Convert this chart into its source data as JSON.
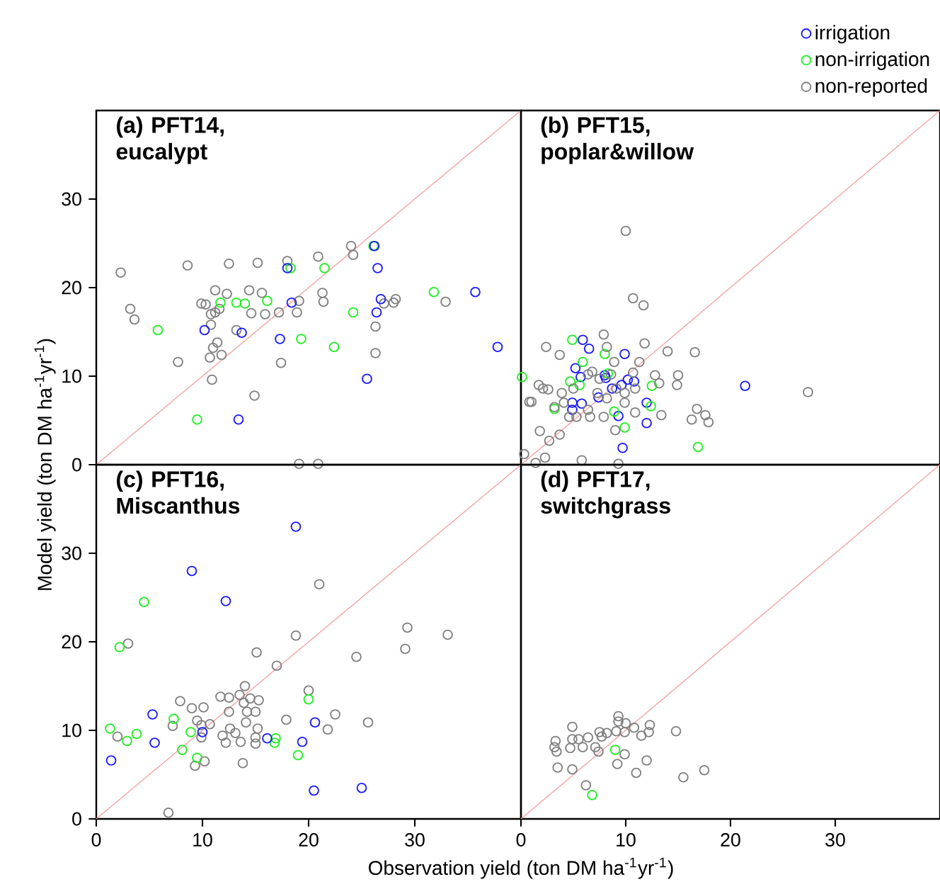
{
  "chart_data": [
    {
      "type": "scatter",
      "title": "(a) PFT14, eucalypt",
      "ylabel": "Model yield (ton DM ha$^{-1}$yr$^{-1}$)",
      "xlim": [
        0,
        40
      ],
      "ylim": [
        0,
        40
      ],
      "xticks": [
        0,
        10,
        20,
        30
      ],
      "yticks": [
        0,
        10,
        20,
        30
      ],
      "tick_labels": "y",
      "marker": "circle",
      "grid": false,
      "legend": false,
      "series": [
        {
          "type": "line",
          "marker": "none",
          "color": "#f4a0a0",
          "x": [
            0,
            40
          ],
          "values": [
            0,
            40
          ]
        },
        {
          "color": "#808080",
          "x": [
            2.3,
            3.2,
            3.6,
            8.6,
            12.5,
            15.2,
            18.0,
            20.9,
            24.0,
            24.2,
            11.2,
            12.3,
            14.4,
            15.6,
            9.9,
            10.3,
            10.8,
            11.2,
            11.6,
            10.8,
            11.0,
            11.4,
            11.8,
            10.7,
            7.7,
            10.9,
            13.2,
            14.6,
            15.9,
            17.2,
            17.4,
            14.9,
            18.9,
            19.1,
            21.3,
            21.4,
            26.3,
            26.3,
            27.1,
            28.0,
            28.2,
            32.9,
            19.1,
            20.9
          ],
          "values": [
            21.7,
            17.6,
            16.4,
            22.5,
            22.7,
            22.8,
            23.0,
            23.5,
            24.7,
            23.7,
            19.7,
            19.3,
            19.7,
            19.4,
            18.2,
            18.1,
            17.0,
            17.2,
            17.6,
            15.8,
            13.2,
            13.8,
            12.4,
            12.1,
            11.6,
            9.6,
            15.2,
            17.1,
            17.0,
            17.2,
            11.5,
            7.8,
            17.2,
            18.5,
            19.4,
            18.4,
            15.6,
            12.6,
            18.2,
            18.3,
            18.7,
            18.4,
            0.1,
            0.1
          ]
        },
        {
          "color": "#22ee22",
          "x": [
            5.8,
            9.5,
            11.7,
            13.2,
            14.0,
            16.1,
            18.3,
            21.5,
            24.2,
            19.3,
            22.4,
            31.8,
            26.1
          ],
          "values": [
            15.2,
            5.1,
            18.3,
            18.3,
            18.2,
            18.5,
            22.2,
            22.2,
            17.2,
            14.2,
            13.3,
            19.5,
            24.7
          ]
        },
        {
          "color": "#1a1aff",
          "x": [
            10.2,
            13.7,
            13.4,
            18.0,
            18.4,
            17.3,
            26.2,
            26.5,
            26.8,
            26.4,
            25.5,
            35.7,
            37.8
          ],
          "values": [
            15.2,
            14.9,
            5.1,
            22.2,
            18.3,
            14.2,
            24.7,
            22.2,
            18.7,
            17.2,
            9.7,
            19.5,
            13.3
          ]
        }
      ]
    },
    {
      "type": "scatter",
      "title": "(b) PFT15, poplar&willow",
      "xlim": [
        0,
        40
      ],
      "ylim": [
        0,
        40
      ],
      "xticks": [
        0,
        10,
        20,
        30
      ],
      "yticks": [
        0,
        10,
        20,
        30
      ],
      "tick_labels": false,
      "marker": "circle",
      "grid": false,
      "legend": "top right",
      "series": [
        {
          "type": "line",
          "marker": "none",
          "color": "#f4a0a0",
          "x": [
            0,
            40
          ],
          "values": [
            0,
            40
          ]
        },
        {
          "name": "irrigation",
          "color": "#1a1aff",
          "x": [
            5.9,
            6.5,
            9.9,
            5.2,
            5.7,
            8.0,
            8.1,
            8.7,
            9.6,
            10.2,
            10.8,
            21.4,
            7.4,
            4.9,
            4.9,
            5.8,
            12.0,
            9.3,
            12.0,
            9.7
          ],
          "values": [
            14.1,
            13.1,
            12.5,
            10.9,
            9.9,
            10.1,
            9.8,
            8.6,
            9.0,
            9.6,
            9.4,
            8.9,
            7.6,
            7.0,
            6.2,
            6.9,
            7.0,
            5.5,
            4.7,
            1.9
          ]
        },
        {
          "name": "non-irrigation",
          "color": "#22ee22",
          "x": [
            0.1,
            4.9,
            5.9,
            8.0,
            4.7,
            5.6,
            8.3,
            12.5,
            3.2,
            12.4,
            8.9,
            9.9,
            16.9
          ],
          "values": [
            9.9,
            14.1,
            11.6,
            12.5,
            9.4,
            9.0,
            10.3,
            8.9,
            6.3,
            6.6,
            6.0,
            4.2,
            2.0
          ]
        },
        {
          "name": "non-reported",
          "color": "#808080",
          "x": [
            10.0,
            10.7,
            11.7,
            7.9,
            2.4,
            3.7,
            8.2,
            11.8,
            14.0,
            16.6,
            11.3,
            8.9,
            6.8,
            10.7,
            12.8,
            15.0,
            13.2,
            14.9,
            27.4,
            1.7,
            2.1,
            2.6,
            0.8,
            1.0,
            3.9,
            3.2,
            4.1,
            5.3,
            6.6,
            7.9,
            6.4,
            9.9,
            9.9,
            9.1,
            10.9,
            13.4,
            16.8,
            17.6,
            17.9,
            16.3,
            1.8,
            2.7,
            3.7,
            9.0,
            0.3,
            1.4,
            2.3,
            5.8,
            9.3,
            6.4,
            7.5,
            8.6,
            5.0,
            7.3,
            8.2,
            10.9,
            4.6
          ],
          "values": [
            26.4,
            18.8,
            18.0,
            14.7,
            13.3,
            12.4,
            13.3,
            13.7,
            12.8,
            12.7,
            11.6,
            11.6,
            10.5,
            10.4,
            10.1,
            10.1,
            9.2,
            9.0,
            8.2,
            9.0,
            8.6,
            8.5,
            7.1,
            7.1,
            8.1,
            6.5,
            7.0,
            5.4,
            5.4,
            5.4,
            6.2,
            7.0,
            8.1,
            8.6,
            8.6,
            5.6,
            6.3,
            5.6,
            4.8,
            5.1,
            3.8,
            2.7,
            3.4,
            3.9,
            1.2,
            0.2,
            0.8,
            0.5,
            0.1,
            10.2,
            9.7,
            10.2,
            8.6,
            8.1,
            7.5,
            5.9,
            5.4
          ]
        }
      ]
    },
    {
      "type": "scatter",
      "title": "(c) PFT16, Miscanthus",
      "xlabel": "Observation yield (ton DM ha$^{-1}$yr$^{-1}$)",
      "xlim": [
        0,
        40
      ],
      "ylim": [
        0,
        40
      ],
      "xticks": [
        0,
        10,
        20,
        30
      ],
      "yticks": [
        0,
        10,
        20,
        30
      ],
      "marker": "circle",
      "grid": false,
      "legend": false,
      "series": [
        {
          "type": "line",
          "marker": "none",
          "color": "#f4a0a0",
          "x": [
            0,
            40
          ],
          "values": [
            0,
            40
          ]
        },
        {
          "color": "#808080",
          "x": [
            21.0,
            18.8,
            29.3,
            33.1,
            29.1,
            24.5,
            15.1,
            17.0,
            3.0,
            14.0,
            11.7,
            12.5,
            13.5,
            14.5,
            15.3,
            7.9,
            9.0,
            10.1,
            12.5,
            14.2,
            15.0,
            13.9,
            20.0,
            22.5,
            17.9,
            25.6,
            21.8,
            9.5,
            7.2,
            9.9,
            10.7,
            12.6,
            13.1,
            11.9,
            14.1,
            15.2,
            15.0,
            13.6,
            12.2,
            15.0,
            9.9,
            2.0,
            10.2,
            9.3,
            13.8,
            6.8
          ],
          "values": [
            26.5,
            20.7,
            21.6,
            20.8,
            19.2,
            18.3,
            18.8,
            17.3,
            19.8,
            15.0,
            13.8,
            13.7,
            14.0,
            13.6,
            13.4,
            13.3,
            12.5,
            12.6,
            12.1,
            12.1,
            12.1,
            13.1,
            14.5,
            11.8,
            11.2,
            10.9,
            10.1,
            11.1,
            10.5,
            10.6,
            10.7,
            10.2,
            9.7,
            9.4,
            10.9,
            10.2,
            9.2,
            8.7,
            8.6,
            8.5,
            9.2,
            9.3,
            6.5,
            6.0,
            6.3,
            0.7
          ]
        },
        {
          "color": "#22ee22",
          "x": [
            4.5,
            2.2,
            1.3,
            2.9,
            3.8,
            7.3,
            8.9,
            8.1,
            9.5,
            20.0,
            16.9,
            16.8,
            19.0
          ],
          "values": [
            24.5,
            19.4,
            10.2,
            8.8,
            9.6,
            11.3,
            9.8,
            7.8,
            6.9,
            13.5,
            9.1,
            8.6,
            7.2
          ]
        },
        {
          "color": "#1a1aff",
          "x": [
            18.8,
            9.0,
            12.2,
            5.3,
            5.5,
            1.4,
            10.0,
            16.1,
            19.4,
            20.6,
            20.5,
            25.0
          ],
          "values": [
            33.0,
            28.0,
            24.6,
            11.8,
            8.6,
            6.6,
            9.8,
            9.1,
            8.7,
            10.9,
            3.2,
            3.5
          ]
        }
      ]
    },
    {
      "type": "scatter",
      "title": "(d) PFT17, switchgrass",
      "xlim": [
        0,
        40
      ],
      "ylim": [
        0,
        40
      ],
      "xticks": [
        0,
        10,
        20,
        30
      ],
      "yticks": [
        0,
        10,
        20,
        30
      ],
      "tick_labels": "x",
      "marker": "circle",
      "grid": false,
      "legend": false,
      "series": [
        {
          "type": "line",
          "marker": "none",
          "color": "#f4a0a0",
          "x": [
            0,
            40
          ],
          "values": [
            0,
            40
          ]
        },
        {
          "color": "#808080",
          "x": [
            4.9,
            9.3,
            9.3,
            10.0,
            10.8,
            12.3,
            12.2,
            11.5,
            9.9,
            9.1,
            8.2,
            7.5,
            7.7,
            7.1,
            6.4,
            5.5,
            4.9,
            3.3,
            3.2,
            3.4,
            4.7,
            5.9,
            7.4,
            9.9,
            9.2,
            12.0,
            11.0,
            3.5,
            4.9,
            6.2,
            14.8,
            15.5,
            17.5
          ],
          "values": [
            10.4,
            11.6,
            11.0,
            10.8,
            10.3,
            10.6,
            9.8,
            9.4,
            9.8,
            9.9,
            9.7,
            9.8,
            9.3,
            8.1,
            9.2,
            9.0,
            9.0,
            8.8,
            8.1,
            7.6,
            8.0,
            8.1,
            7.6,
            7.3,
            6.2,
            6.6,
            5.2,
            5.8,
            5.6,
            3.8,
            9.9,
            4.7,
            5.5
          ]
        },
        {
          "color": "#22ee22",
          "x": [
            9.0,
            6.8
          ],
          "values": [
            7.8,
            2.7
          ]
        }
      ]
    }
  ]
}
